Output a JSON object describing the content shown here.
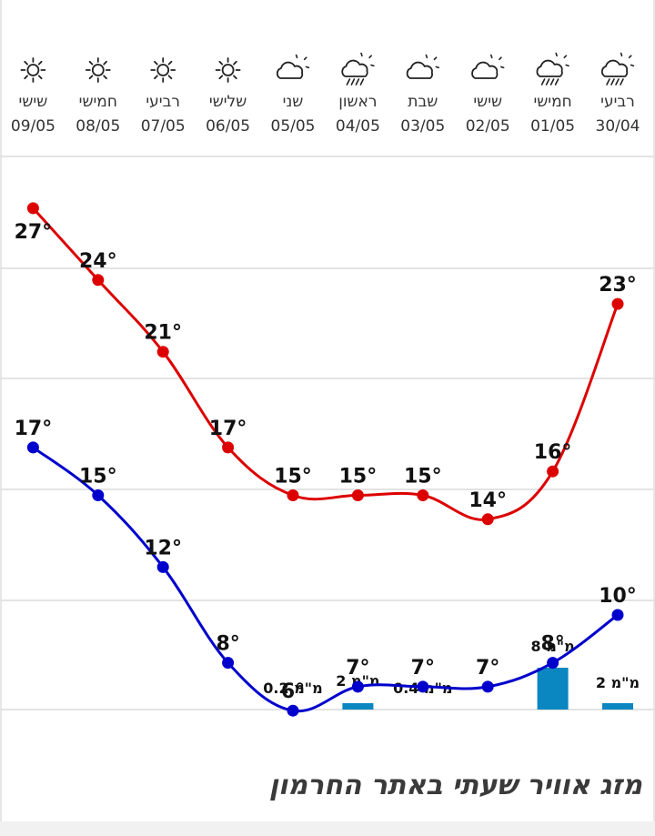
{
  "page": {
    "footer_title": "מזג אוויר שעתי באתר החרמון"
  },
  "colors": {
    "high": "#dd0000",
    "low": "#0000cc",
    "rain": "#0a86c0",
    "grid": "#e3e3e3",
    "icon": "#222222"
  },
  "chart_data": {
    "type": "line",
    "days": [
      {
        "day": "רביעי",
        "date": "30/04",
        "icon": "cloud-rain-icon"
      },
      {
        "day": "חמישי",
        "date": "01/05",
        "icon": "cloud-rain-icon"
      },
      {
        "day": "שישי",
        "date": "02/05",
        "icon": "partly-cloudy-icon"
      },
      {
        "day": "שבת",
        "date": "03/05",
        "icon": "partly-cloudy-icon"
      },
      {
        "day": "ראשון",
        "date": "04/05",
        "icon": "cloud-rain-icon"
      },
      {
        "day": "שני",
        "date": "05/05",
        "icon": "partly-cloudy-icon"
      },
      {
        "day": "שלישי",
        "date": "06/05",
        "icon": "sun-icon"
      },
      {
        "day": "רביעי",
        "date": "07/05",
        "icon": "sun-icon"
      },
      {
        "day": "חמישי",
        "date": "08/05",
        "icon": "sun-icon"
      },
      {
        "day": "שישי",
        "date": "09/05",
        "icon": "sun-icon"
      }
    ],
    "series": [
      {
        "values": [
          23,
          16,
          14,
          15,
          15,
          15,
          17,
          21,
          24,
          27
        ],
        "labels": [
          "23°",
          "16°",
          "14°",
          "15°",
          "15°",
          "15°",
          "17°",
          "21°",
          "24°",
          "27°"
        ]
      },
      {
        "values": [
          10,
          8,
          7,
          7,
          7,
          6,
          8,
          12,
          15,
          17
        ],
        "labels": [
          "10°",
          "8°",
          "7°",
          "7°",
          "7°",
          "6°",
          "8°",
          "12°",
          "15°",
          "17°"
        ]
      }
    ],
    "precipitation": {
      "values": [
        2,
        8,
        0,
        0.4,
        2,
        0.2,
        0,
        0,
        0,
        0
      ],
      "labels": [
        "2 מ\"מ",
        "8 מ\"מ",
        "",
        "0.4 מ\"מ",
        "2 מ\"מ",
        "0.2 מ\"מ",
        "",
        "",
        "",
        ""
      ]
    },
    "ylim": [
      0,
      30
    ],
    "grid": true
  }
}
